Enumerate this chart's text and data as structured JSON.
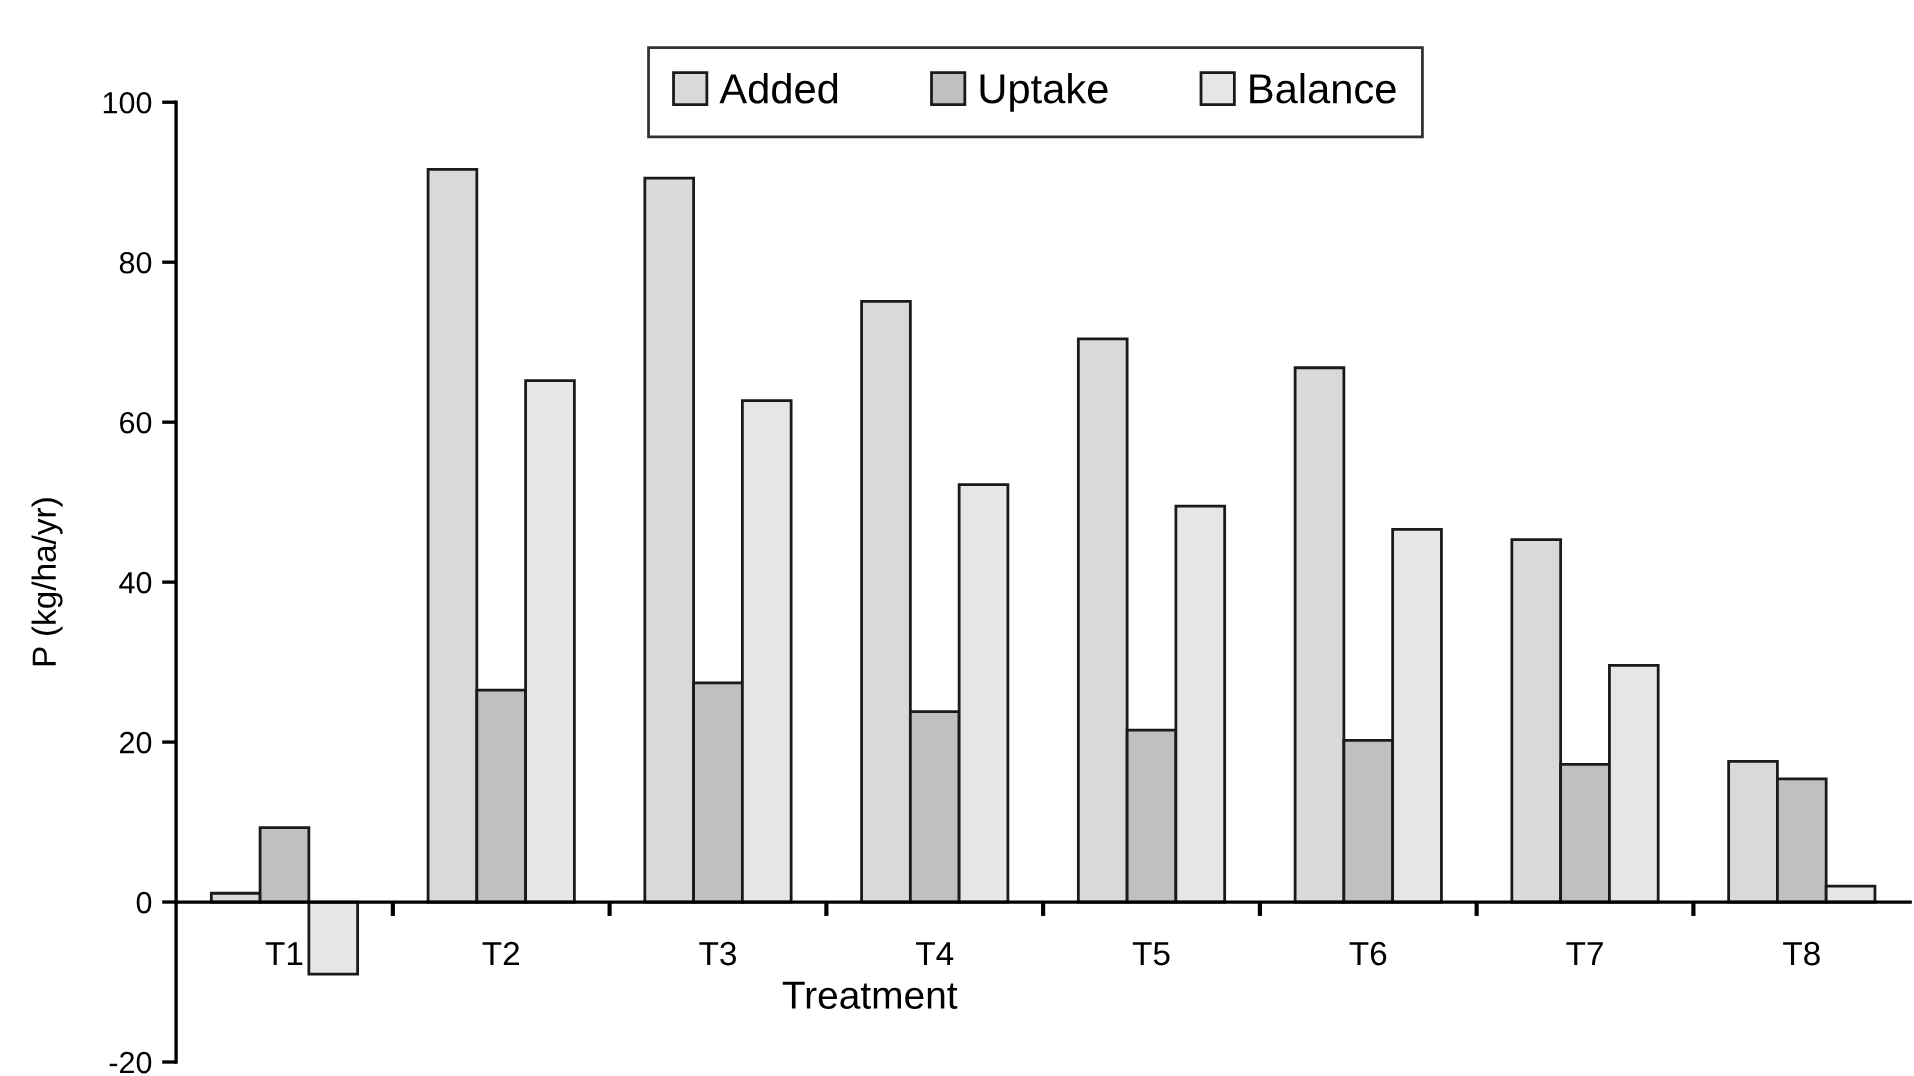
{
  "chart_data": {
    "type": "bar",
    "xlabel": "Treatment",
    "ylabel": "P (kg/ha/yr)",
    "categories": [
      "T1",
      "T2",
      "T3",
      "T4",
      "T5",
      "T6",
      "T7",
      "T8"
    ],
    "series": [
      {
        "name": "Added",
        "color": "#d9d9d9",
        "values": [
          1.1,
          91.6,
          90.5,
          75.1,
          70.4,
          66.8,
          45.3,
          17.6
        ]
      },
      {
        "name": "Uptake",
        "color": "#c0c0c0",
        "values": [
          9.3,
          26.5,
          27.4,
          23.8,
          21.5,
          20.2,
          17.2,
          15.4
        ]
      },
      {
        "name": "Balance",
        "color": "#e6e6e6",
        "values": [
          -9.0,
          65.2,
          62.7,
          52.2,
          49.5,
          46.6,
          29.6,
          2.0
        ]
      }
    ],
    "ylim": [
      -20,
      100
    ],
    "yticks": [
      -20,
      0,
      20,
      40,
      60,
      80,
      100
    ],
    "grid": false,
    "legend": "top"
  }
}
